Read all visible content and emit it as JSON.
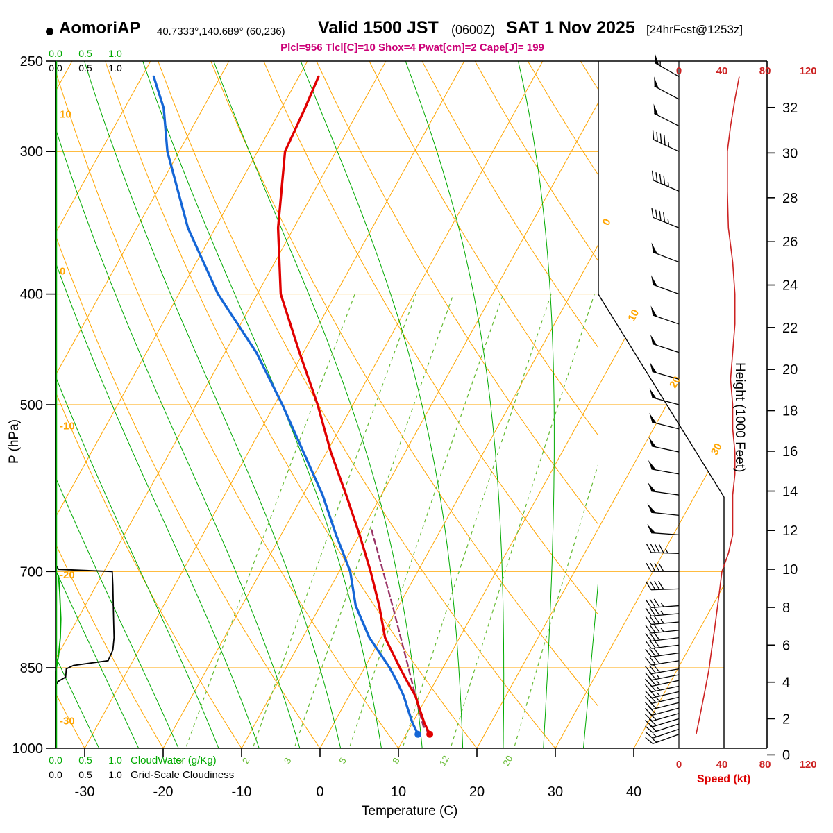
{
  "header": {
    "station": "AomoriAP",
    "coords": "40.7333°,140.689° (60,236)",
    "valid": "Valid 1500 JST",
    "valid_z": "(0600Z)",
    "valid_date": "SAT 1 Nov 2025",
    "forecast_tag": "[24hrFcst@1253z]",
    "indices": "Plcl=956 Tlcl[C]=10 Shox=4 Pwat[cm]=2 Cape[J]= 199"
  },
  "axis_titles": {
    "pressure": "P (hPa)",
    "temperature": "Temperature (C)",
    "height": "Height (1000 Feet)",
    "speed": "Speed (kt)",
    "cloud_water": "CloudWater (g/Kg)",
    "cloudiness": "Grid-Scale Cloudiness"
  },
  "colors": {
    "grid_orange": "#ffa500",
    "moist_green": "#00aa00",
    "mix_green": "#66bb33",
    "temp_red": "#e00000",
    "dew_blue": "#1566d6",
    "parcel": "#993366",
    "speed_red": "#cc2222",
    "indices_magenta": "#cc0077",
    "black": "#000000"
  },
  "chart_data": {
    "type": "line",
    "variant": "skew-t log-p thermodynamic sounding",
    "pressure_range_hPa": [
      1000,
      250
    ],
    "temperature_range_C": [
      -30,
      40
    ],
    "pressure_ticks_hPa": [
      250,
      300,
      400,
      500,
      700,
      850,
      1000
    ],
    "temperature_ticks_C": [
      -30,
      -20,
      -10,
      0,
      10,
      20,
      30,
      40
    ],
    "height_ticks_kft": [
      0,
      2,
      4,
      6,
      8,
      10,
      12,
      14,
      16,
      18,
      20,
      22,
      24,
      26,
      28,
      30,
      32
    ],
    "speed_ticks_kt": [
      0,
      40,
      80,
      120
    ],
    "cloud_scale_ticks": [
      "0.0",
      "0.5",
      "1.0"
    ],
    "mixing_ratio_lines_gkg": [
      1,
      2,
      3,
      5,
      8,
      12,
      20
    ],
    "dry_adiabat_labels_C": [
      10,
      0,
      -10,
      -20,
      -30
    ],
    "isotherm_labels_right_C": [
      0,
      10,
      20,
      30
    ],
    "series": {
      "temperature_C": [
        [
          972,
          13
        ],
        [
          950,
          11.5
        ],
        [
          925,
          10
        ],
        [
          900,
          8.5
        ],
        [
          875,
          6.5
        ],
        [
          850,
          4.5
        ],
        [
          800,
          0.5
        ],
        [
          750,
          -2.5
        ],
        [
          700,
          -6
        ],
        [
          650,
          -10
        ],
        [
          600,
          -14.5
        ],
        [
          550,
          -19.5
        ],
        [
          500,
          -24.5
        ],
        [
          450,
          -30.5
        ],
        [
          400,
          -37
        ],
        [
          350,
          -42
        ],
        [
          300,
          -46.5
        ],
        [
          275,
          -47
        ],
        [
          258,
          -47.5
        ]
      ],
      "dewpoint_C": [
        [
          972,
          11.5
        ],
        [
          950,
          10
        ],
        [
          925,
          8.5
        ],
        [
          900,
          7
        ],
        [
          875,
          5.2
        ],
        [
          850,
          3.2
        ],
        [
          800,
          -1.5
        ],
        [
          750,
          -5.5
        ],
        [
          700,
          -8.6
        ],
        [
          650,
          -13
        ],
        [
          600,
          -17.5
        ],
        [
          550,
          -23
        ],
        [
          500,
          -29
        ],
        [
          450,
          -36
        ],
        [
          400,
          -45
        ],
        [
          350,
          -53.5
        ],
        [
          300,
          -61.5
        ],
        [
          275,
          -65
        ],
        [
          258,
          -68.5
        ]
      ],
      "parcel_C": [
        [
          972,
          13
        ],
        [
          956,
          11.6
        ],
        [
          925,
          9.9
        ],
        [
          900,
          8.5
        ],
        [
          850,
          5.6
        ],
        [
          800,
          2.5
        ],
        [
          750,
          -0.8
        ],
        [
          700,
          -4.4
        ],
        [
          650,
          -8.3
        ],
        [
          640,
          -9.1
        ]
      ],
      "wind": [
        [
          972,
          250,
          16
        ],
        [
          962,
          251,
          17
        ],
        [
          952,
          252,
          18
        ],
        [
          942,
          253,
          19
        ],
        [
          932,
          254,
          20
        ],
        [
          922,
          255,
          21
        ],
        [
          912,
          256,
          22
        ],
        [
          902,
          257,
          23
        ],
        [
          892,
          257,
          24
        ],
        [
          882,
          258,
          25
        ],
        [
          872,
          258,
          26
        ],
        [
          862,
          259,
          27
        ],
        [
          852,
          260,
          28
        ],
        [
          838,
          261,
          29
        ],
        [
          825,
          262,
          30
        ],
        [
          812,
          263,
          31
        ],
        [
          800,
          263,
          32
        ],
        [
          788,
          264,
          33
        ],
        [
          775,
          265,
          34
        ],
        [
          762,
          265,
          35
        ],
        [
          750,
          266,
          36
        ],
        [
          725,
          268,
          38
        ],
        [
          700,
          270,
          40
        ],
        [
          675,
          272,
          46
        ],
        [
          650,
          274,
          50
        ],
        [
          625,
          276,
          50
        ],
        [
          600,
          278,
          50
        ],
        [
          575,
          280,
          52
        ],
        [
          550,
          282,
          52
        ],
        [
          525,
          284,
          50
        ],
        [
          500,
          285,
          50
        ],
        [
          475,
          286,
          48
        ],
        [
          450,
          288,
          50
        ],
        [
          425,
          289,
          52
        ],
        [
          400,
          290,
          52
        ],
        [
          375,
          291,
          50
        ],
        [
          350,
          292,
          46
        ],
        [
          325,
          293,
          45
        ],
        [
          300,
          295,
          45
        ],
        [
          285,
          297,
          48
        ],
        [
          270,
          298,
          52
        ],
        [
          258,
          300,
          56
        ]
      ],
      "cloudiness_frac": [
        [
          250,
          0
        ],
        [
          690,
          0
        ],
        [
          697,
          0.05
        ],
        [
          700,
          0.95
        ],
        [
          720,
          0.96
        ],
        [
          760,
          0.97
        ],
        [
          800,
          0.98
        ],
        [
          820,
          0.96
        ],
        [
          838,
          0.88
        ],
        [
          846,
          0.3
        ],
        [
          852,
          0.18
        ],
        [
          866,
          0.17
        ],
        [
          874,
          0.04
        ],
        [
          882,
          0
        ],
        [
          1000,
          0
        ]
      ],
      "cloud_water": [
        [
          250,
          0
        ],
        [
          700,
          0
        ],
        [
          706,
          0.05
        ],
        [
          730,
          0.07
        ],
        [
          770,
          0.09
        ],
        [
          800,
          0.08
        ],
        [
          830,
          0.05
        ],
        [
          848,
          0.02
        ],
        [
          856,
          0
        ],
        [
          1000,
          0
        ]
      ]
    }
  }
}
